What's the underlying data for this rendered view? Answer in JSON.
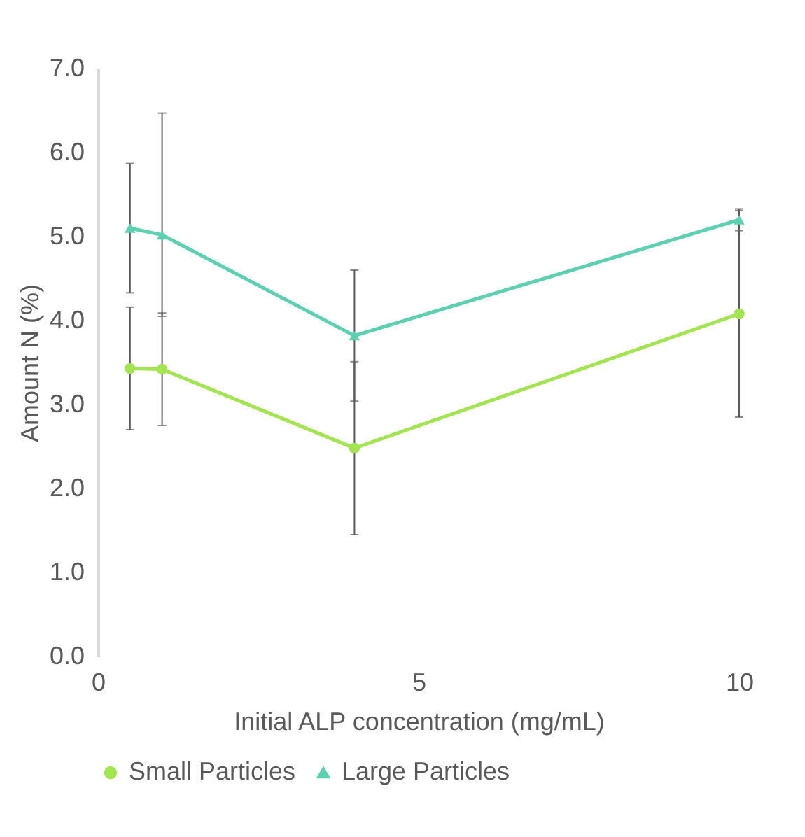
{
  "chart_data": {
    "type": "line",
    "xlabel": "Initial ALP concentration (mg/mL)",
    "ylabel": "Amount N (%)",
    "x": [
      0.5,
      1,
      4,
      10
    ],
    "series": [
      {
        "name": "Small Particles",
        "color": "#a3e551",
        "marker": "circle",
        "values": [
          3.43,
          3.42,
          2.48,
          4.08
        ],
        "errors": [
          0.73,
          0.67,
          1.03,
          1.23
        ]
      },
      {
        "name": "Large Particles",
        "color": "#5bd1b0",
        "marker": "triangle",
        "values": [
          5.1,
          5.02,
          3.82,
          5.2
        ],
        "errors": [
          0.77,
          [
            4.05,
            6.47
          ],
          0.78,
          0.13
        ]
      }
    ],
    "xlim": [
      0,
      10
    ],
    "xticks": [
      0,
      5,
      10
    ],
    "ylim": [
      0,
      7
    ],
    "yticks": [
      {
        "value": 0,
        "label": "0.0"
      },
      {
        "value": 1,
        "label": "1.0"
      },
      {
        "value": 2,
        "label": "2.0"
      },
      {
        "value": 3,
        "label": "3.0"
      },
      {
        "value": 4,
        "label": "4.0"
      },
      {
        "value": 5,
        "label": "5.0"
      },
      {
        "value": 6,
        "label": "6.0"
      },
      {
        "value": 7,
        "label": "7.0"
      }
    ],
    "grid": false,
    "legend": "bottom"
  }
}
